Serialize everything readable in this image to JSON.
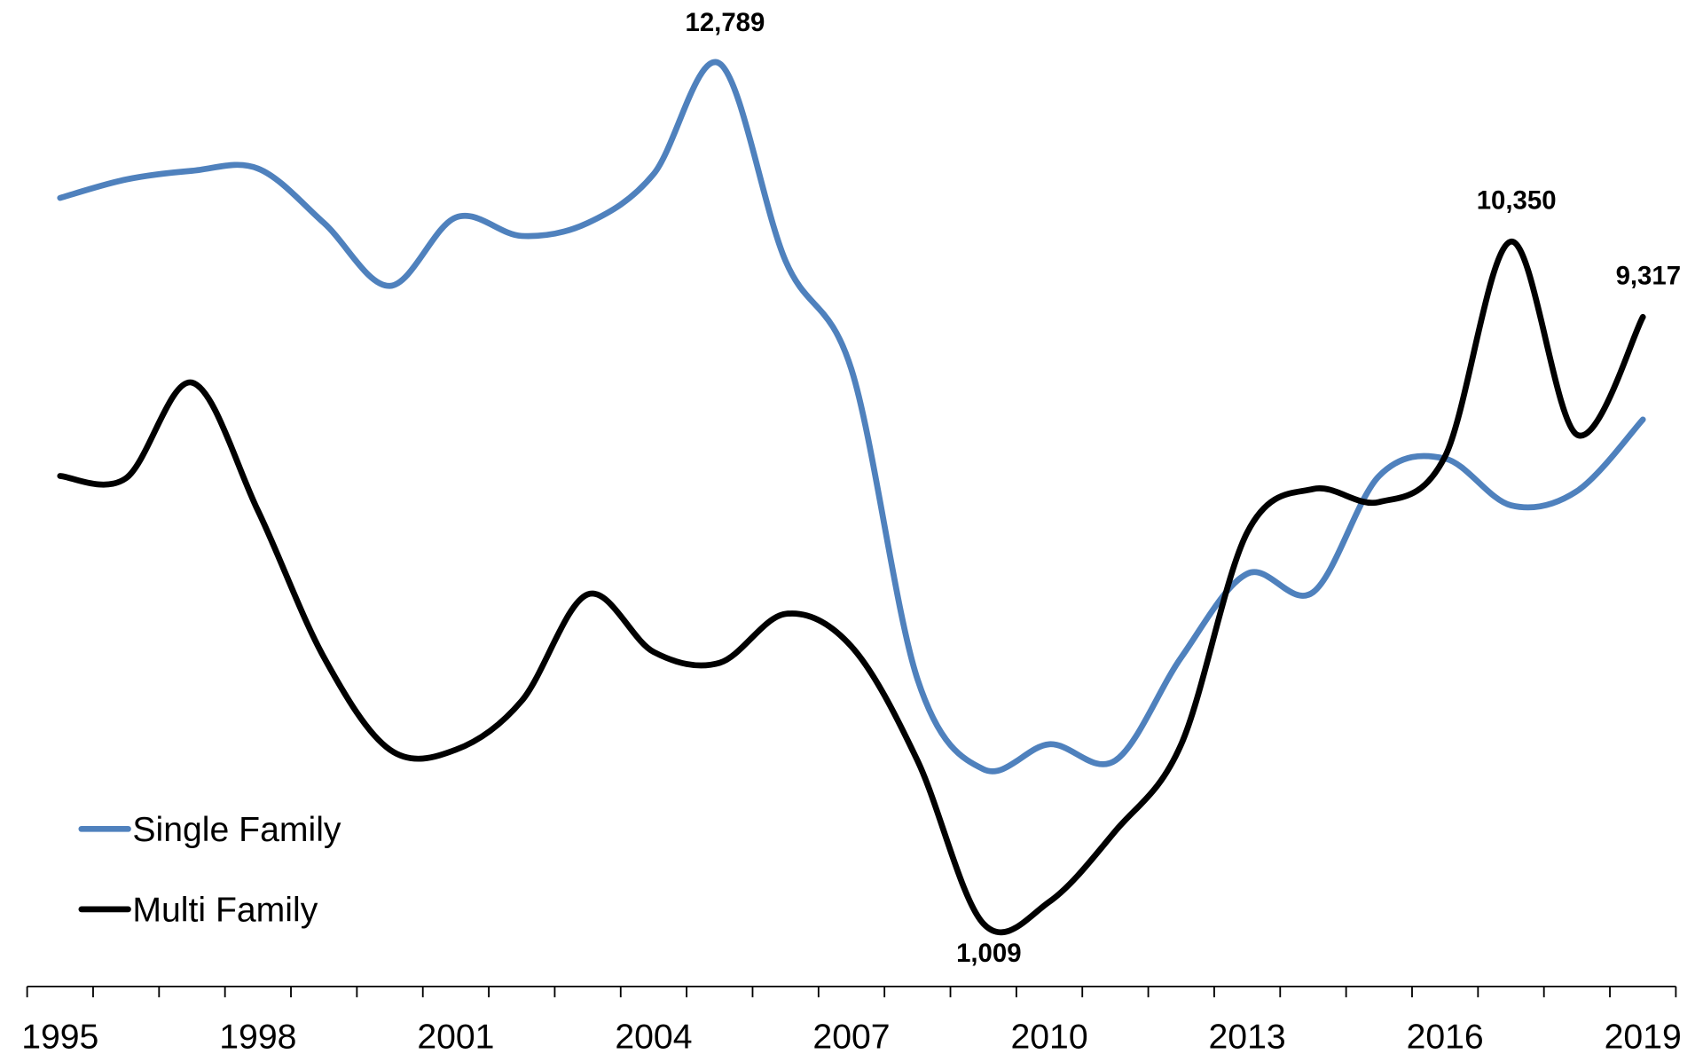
{
  "chart_data": {
    "type": "line",
    "categories": [
      "1995",
      null,
      null,
      "1998",
      null,
      null,
      "2001",
      null,
      null,
      "2004",
      null,
      null,
      "2007",
      null,
      null,
      "2010",
      null,
      null,
      "2013",
      null,
      null,
      "2016",
      null,
      null,
      "2019"
    ],
    "series": [
      {
        "name": "Single Family",
        "color": "#4f81bd",
        "values": [
          10948,
          11200,
          11319,
          11350,
          10605,
          9743,
          10680,
          10427,
          10605,
          11275,
          12789,
          10085,
          8597,
          4358,
          3124,
          3466,
          3243,
          4656,
          5801,
          5548,
          7140,
          7378,
          6738,
          6932,
          7913
        ],
        "value_labels": [
          null,
          null,
          null,
          null,
          null,
          null,
          null,
          null,
          null,
          null,
          "12,789",
          null,
          null,
          null,
          null,
          null,
          null,
          null,
          null,
          null,
          null,
          null,
          null,
          null,
          null
        ]
      },
      {
        "name": "Multi Family",
        "color": "#000000",
        "values": [
          7140,
          7110,
          8419,
          6664,
          4656,
          3391,
          3391,
          4061,
          5518,
          4730,
          4581,
          5251,
          4804,
          3243,
          1009,
          1309,
          2276,
          3466,
          6366,
          6961,
          6783,
          7407,
          10350,
          7705,
          9317
        ],
        "value_labels": [
          null,
          null,
          null,
          null,
          null,
          null,
          null,
          null,
          null,
          null,
          null,
          null,
          null,
          null,
          "1,009",
          null,
          null,
          null,
          null,
          null,
          null,
          null,
          "10,350",
          null,
          "9,317"
        ]
      }
    ],
    "ylim": [
      0,
      14000
    ],
    "legend": "lower left",
    "smooth": true
  }
}
